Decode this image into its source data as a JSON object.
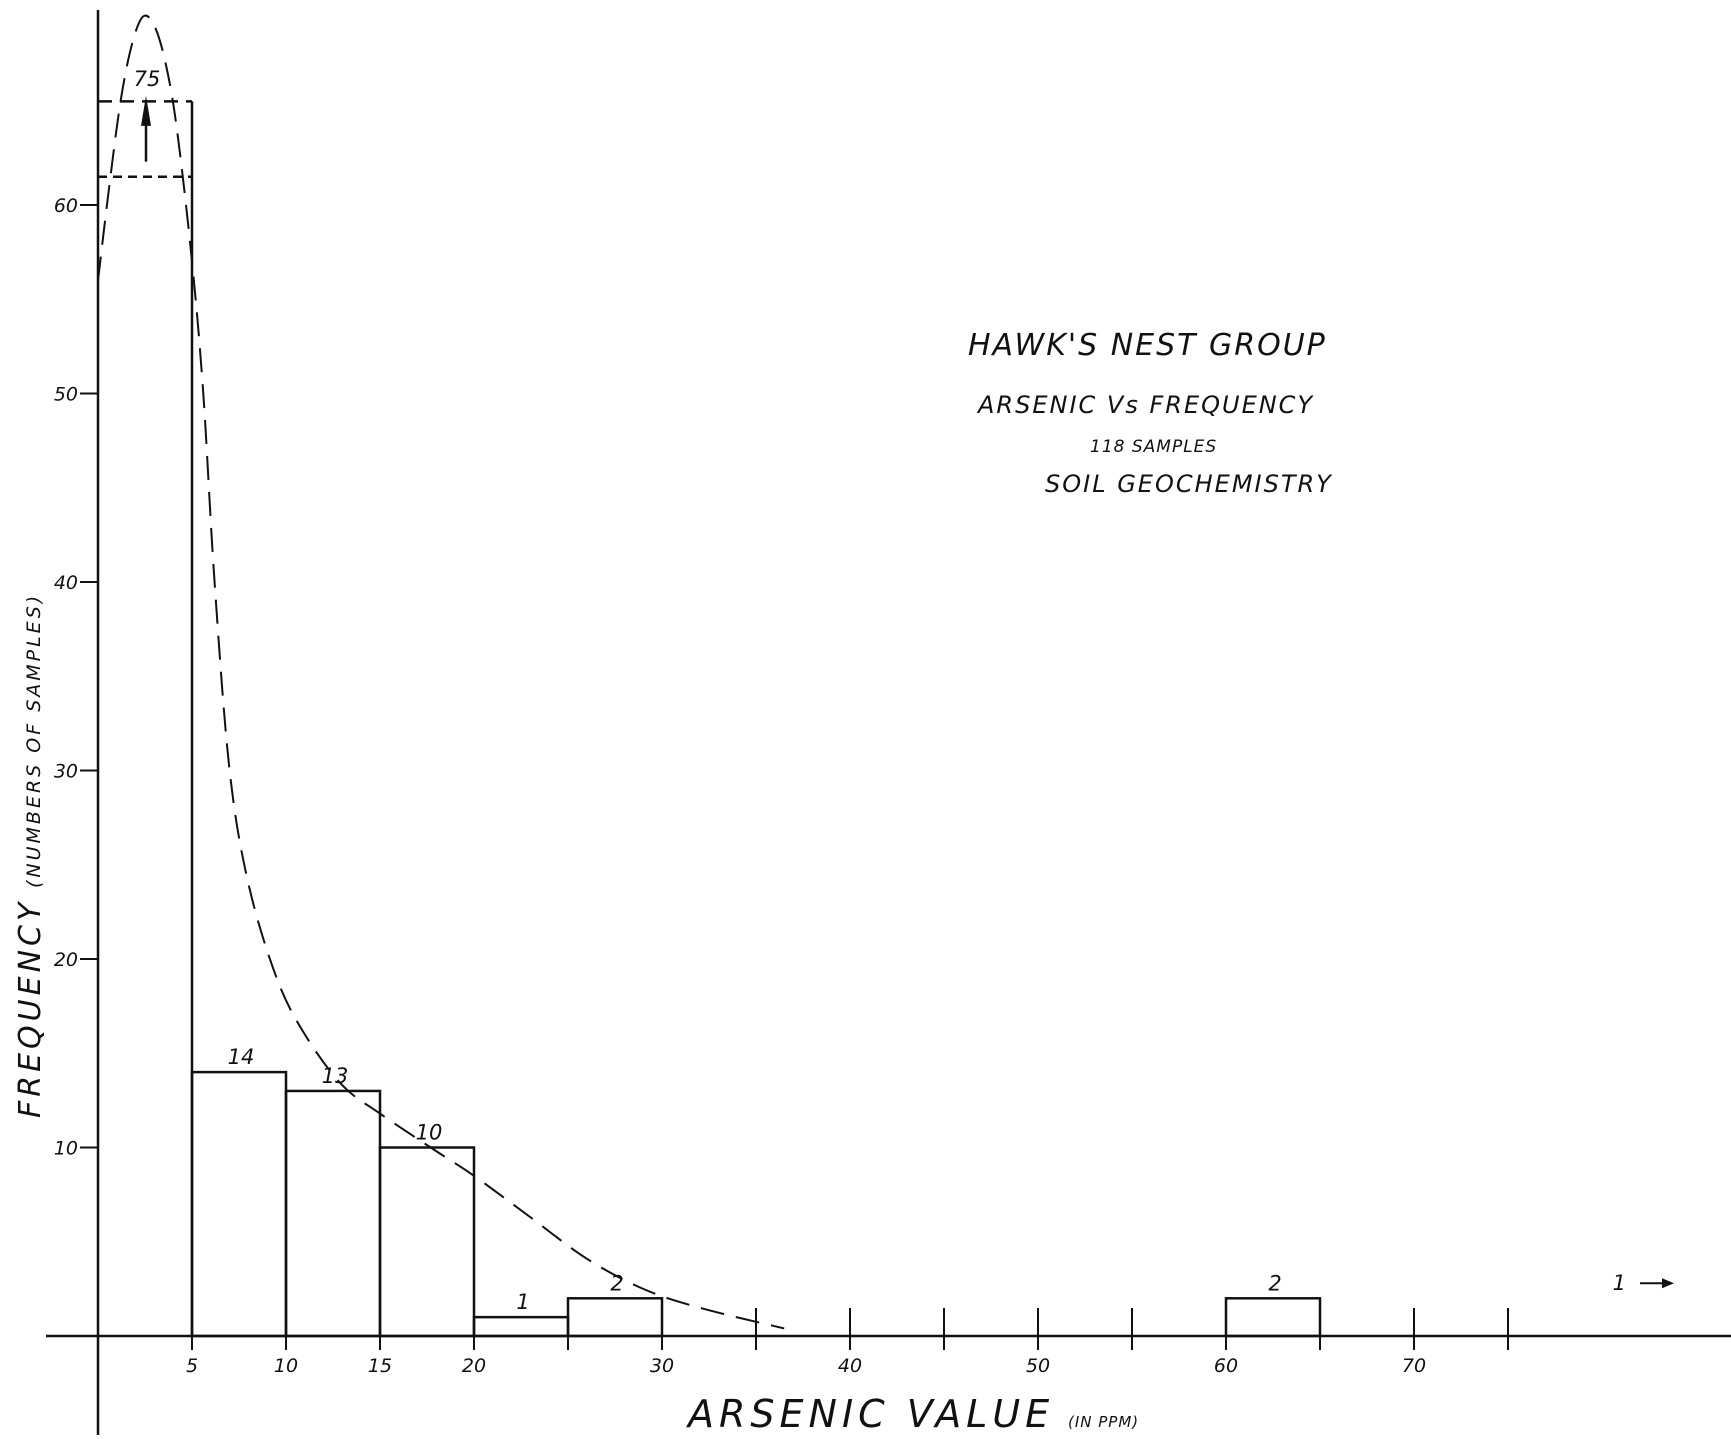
{
  "chart_data": {
    "type": "bar",
    "title": "HAWK'S NEST GROUP",
    "subtitle": "ARSENIC Vs FREQUENCY",
    "subtitle_2": "118 SAMPLES",
    "subtitle_3": "SOIL GEOCHEMISTRY",
    "xlabel": "ARSENIC VALUE",
    "xlabel_unit": "(IN PPM)",
    "ylabel": "FREQUENCY",
    "ylabel_unit": "(NUMBERS OF SAMPLES)",
    "xlim": [
      0,
      85
    ],
    "ylim": [
      0,
      70
    ],
    "x_ticks": [
      5,
      10,
      15,
      20,
      25,
      30,
      35,
      40,
      45,
      50,
      55,
      60,
      65,
      70,
      75
    ],
    "x_tick_labels": [
      {
        "x": 5,
        "label": "5"
      },
      {
        "x": 10,
        "label": "10"
      },
      {
        "x": 15,
        "label": "15"
      },
      {
        "x": 20,
        "label": "20"
      },
      {
        "x": 30,
        "label": "30"
      },
      {
        "x": 40,
        "label": "40"
      },
      {
        "x": 50,
        "label": "50"
      },
      {
        "x": 60,
        "label": "60"
      },
      {
        "x": 70,
        "label": "70"
      }
    ],
    "y_ticks": [
      {
        "y": 10,
        "label": "10"
      },
      {
        "y": 20,
        "label": "20"
      },
      {
        "y": 30,
        "label": "30"
      },
      {
        "y": 40,
        "label": "40"
      },
      {
        "y": 50,
        "label": "50"
      },
      {
        "y": 60,
        "label": "60"
      }
    ],
    "bins": [
      {
        "x0": 0,
        "x1": 5,
        "value": 75,
        "label": "75",
        "broken": true
      },
      {
        "x0": 5,
        "x1": 10,
        "value": 14,
        "label": "14"
      },
      {
        "x0": 10,
        "x1": 15,
        "value": 13,
        "label": "13"
      },
      {
        "x0": 15,
        "x1": 20,
        "value": 10,
        "label": "10"
      },
      {
        "x0": 20,
        "x1": 25,
        "value": 1,
        "label": "1"
      },
      {
        "x0": 25,
        "x1": 30,
        "value": 2,
        "label": "2"
      },
      {
        "x0": 60,
        "x1": 65,
        "value": 2,
        "label": "2"
      }
    ],
    "offscale_annotation": {
      "label": "1",
      "direction": "right"
    },
    "fitted_curve": {
      "style": "dashed",
      "points": [
        [
          0,
          56
        ],
        [
          0.6,
          61
        ],
        [
          1.2,
          65.5
        ],
        [
          1.8,
          68.5
        ],
        [
          2.4,
          70
        ],
        [
          3,
          69.5
        ],
        [
          3.6,
          67.5
        ],
        [
          4.2,
          64
        ],
        [
          5,
          57
        ],
        [
          5.6,
          50
        ],
        [
          6.2,
          40
        ],
        [
          7,
          30
        ],
        [
          8,
          24
        ],
        [
          9.5,
          19
        ],
        [
          11,
          16
        ],
        [
          13,
          13.3
        ],
        [
          15,
          11.8
        ],
        [
          18,
          9.8
        ],
        [
          20,
          8.5
        ],
        [
          23,
          6.3
        ],
        [
          26,
          4.1
        ],
        [
          29,
          2.5
        ],
        [
          32,
          1.5
        ],
        [
          36.5,
          0.4
        ]
      ]
    },
    "grid": false,
    "legend": "none"
  }
}
